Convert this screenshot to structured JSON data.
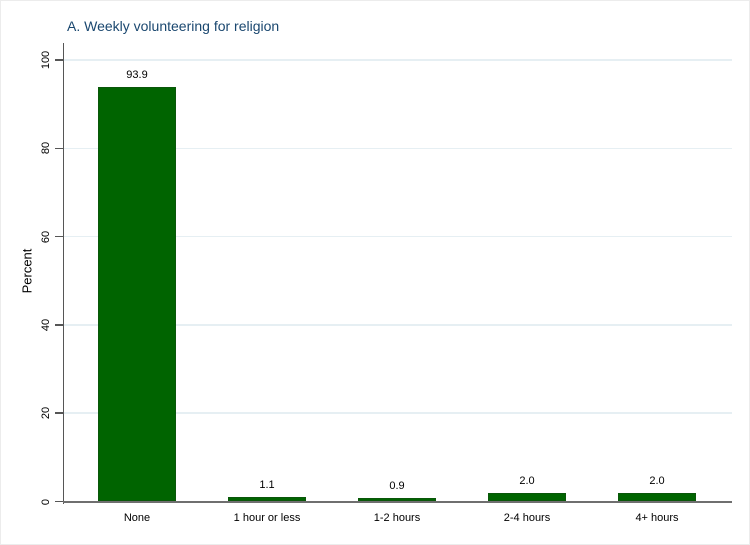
{
  "chart_data": {
    "type": "bar",
    "title": "A. Weekly volunteering for religion",
    "ylabel": "Percent",
    "xlabel": "",
    "categories": [
      "None",
      "1 hour or less",
      "1-2 hours",
      "2-4 hours",
      "4+ hours"
    ],
    "values": [
      93.9,
      1.1,
      0.9,
      2.0,
      2.0
    ],
    "value_labels": [
      "93.9",
      "1.1",
      "0.9",
      "2.0",
      "2.0"
    ],
    "yticks": [
      0,
      20,
      40,
      60,
      80,
      100
    ],
    "ylim": [
      0,
      104
    ],
    "grid": true,
    "legend": "none",
    "colors": {
      "bar_fill": "#006400",
      "bar_border": "#0a560a",
      "gridline": "#e6eff3",
      "axis": "#565656",
      "x_axis": "#6f6f6f",
      "title": "#1a476f",
      "text": "#000000",
      "background": "#ffffff"
    }
  }
}
